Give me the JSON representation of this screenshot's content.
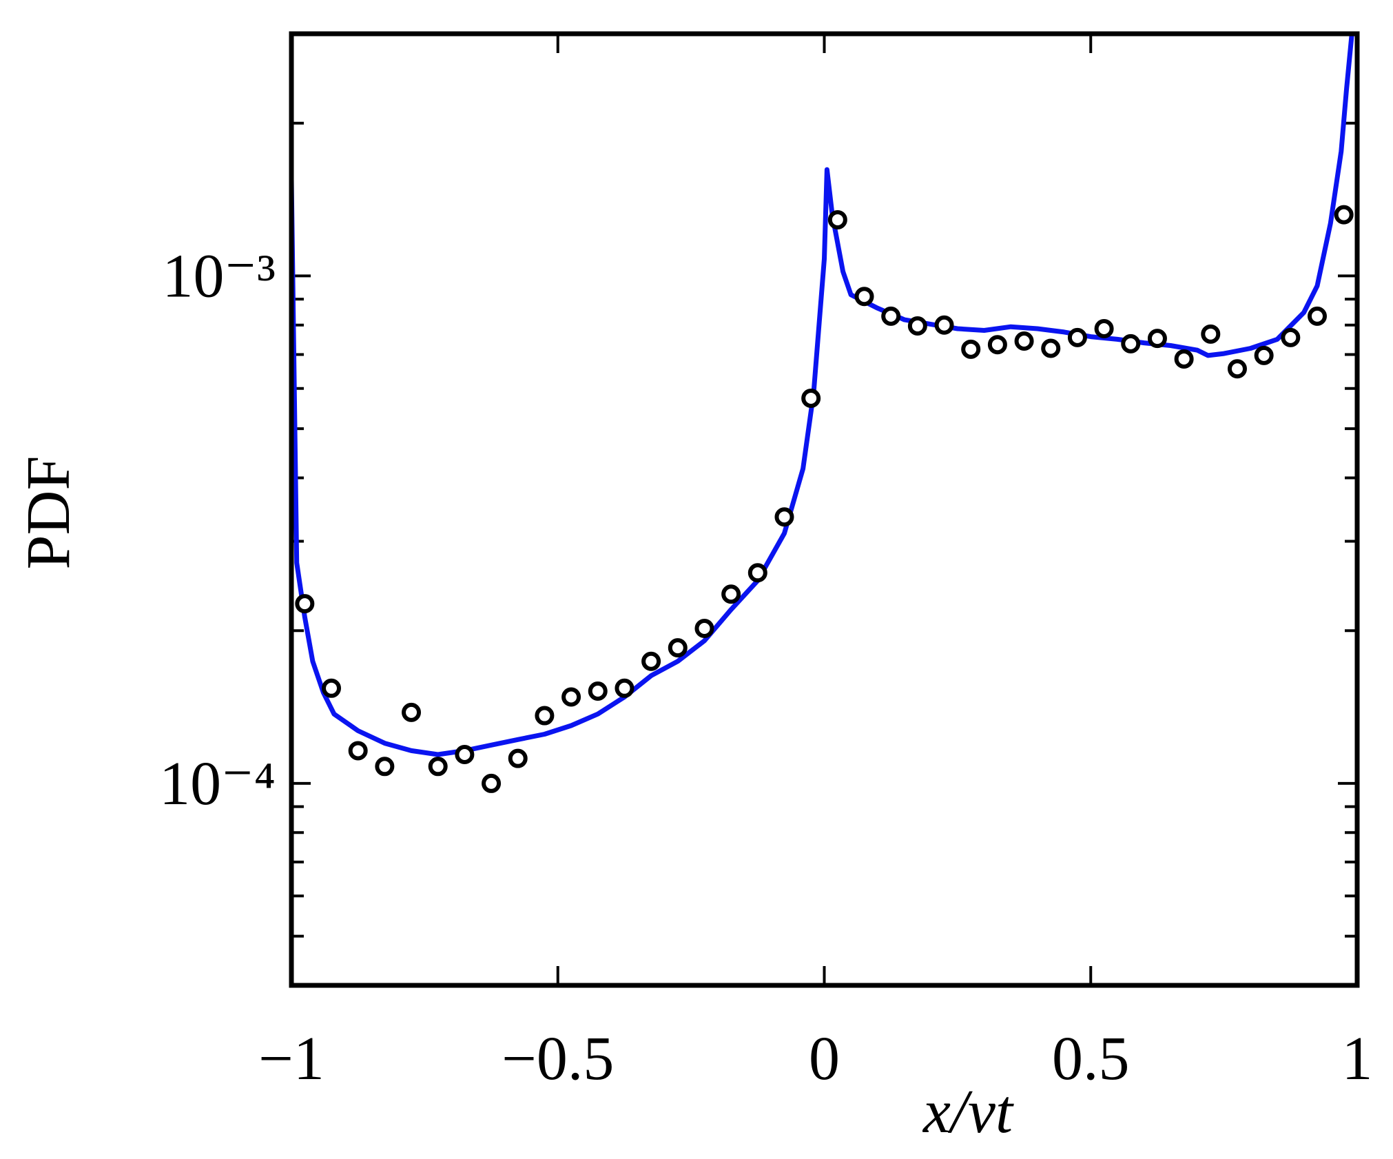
{
  "chart_data": {
    "type": "line",
    "xlabel": "x/vt",
    "ylabel": "PDF",
    "xlim": [
      -1,
      1
    ],
    "xticks": [
      {
        "value": -1,
        "label": "−1"
      },
      {
        "value": -0.5,
        "label": "−0.5"
      },
      0,
      0.5,
      1
    ],
    "ylim": [
      4e-05,
      0.003
    ],
    "log_y": true,
    "yticks": [
      {
        "value": 0.0001,
        "label": "10⁻⁴"
      },
      {
        "value": 0.001,
        "label": "10⁻³"
      }
    ],
    "yminor_ticks": [
      5e-05,
      6e-05,
      7e-05,
      8e-05,
      9e-05,
      0.0002,
      0.0003,
      0.0004,
      0.0005,
      0.0006,
      0.0007,
      0.0008,
      0.0009,
      0.002
    ],
    "series": [
      {
        "type": "line",
        "color": "#0a14f0",
        "x": [
          -1,
          -0.99,
          -0.975,
          -0.96,
          -0.94,
          -0.92,
          -0.875,
          -0.825,
          -0.775,
          -0.725,
          -0.675,
          -0.625,
          -0.575,
          -0.525,
          -0.475,
          -0.425,
          -0.375,
          -0.325,
          -0.275,
          -0.225,
          -0.175,
          -0.125,
          -0.075,
          -0.04,
          -0.02,
          0,
          0.005,
          0.015,
          0.035,
          0.05,
          0.1,
          0.15,
          0.2,
          0.25,
          0.3,
          0.35,
          0.4,
          0.45,
          0.5,
          0.55,
          0.6,
          0.65,
          0.7,
          0.72,
          0.75,
          0.8,
          0.85,
          0.9,
          0.925,
          0.95,
          0.97,
          0.98,
          0.99
        ],
        "values": [
          0.00155,
          0.000272,
          0.000213,
          0.000174,
          0.000151,
          0.000137,
          0.000127,
          0.00012,
          0.000116,
          0.000114,
          0.000116,
          0.000119,
          0.000122,
          0.000125,
          0.00013,
          0.000137,
          0.000148,
          0.000163,
          0.000174,
          0.000191,
          0.00022,
          0.000251,
          0.000311,
          0.000417,
          0.000588,
          0.00108,
          0.00162,
          0.00132,
          0.00102,
          0.000918,
          0.000864,
          0.00082,
          0.000803,
          0.000787,
          0.000781,
          0.000794,
          0.000787,
          0.000775,
          0.000759,
          0.00075,
          0.000738,
          0.000729,
          0.000714,
          0.000697,
          0.000703,
          0.00072,
          0.00075,
          0.000847,
          0.000956,
          0.00127,
          0.00176,
          0.00233,
          0.003
        ]
      },
      {
        "type": "scatter",
        "color": "#000000",
        "x": [
          -0.975,
          -0.925,
          -0.875,
          -0.825,
          -0.775,
          -0.725,
          -0.675,
          -0.625,
          -0.575,
          -0.525,
          -0.475,
          -0.425,
          -0.375,
          -0.325,
          -0.275,
          -0.225,
          -0.175,
          -0.125,
          -0.075,
          -0.025,
          0.025,
          0.075,
          0.125,
          0.175,
          0.225,
          0.275,
          0.325,
          0.375,
          0.425,
          0.475,
          0.525,
          0.575,
          0.625,
          0.675,
          0.725,
          0.775,
          0.825,
          0.875,
          0.925,
          0.975
        ],
        "values": [
          0.000226,
          0.000154,
          0.000116,
          0.000108,
          0.000138,
          0.000108,
          0.000114,
          0.0001,
          0.000112,
          0.000136,
          0.000148,
          0.000152,
          0.000154,
          0.000174,
          0.000185,
          0.000202,
          0.000236,
          0.00026,
          0.000335,
          0.000574,
          0.00129,
          0.000911,
          0.000833,
          0.000797,
          0.0008,
          0.000717,
          0.000732,
          0.000744,
          0.00072,
          0.000756,
          0.000787,
          0.000735,
          0.000753,
          0.000686,
          0.000768,
          0.000656,
          0.000697,
          0.000756,
          0.000833,
          0.00132
        ]
      }
    ]
  }
}
